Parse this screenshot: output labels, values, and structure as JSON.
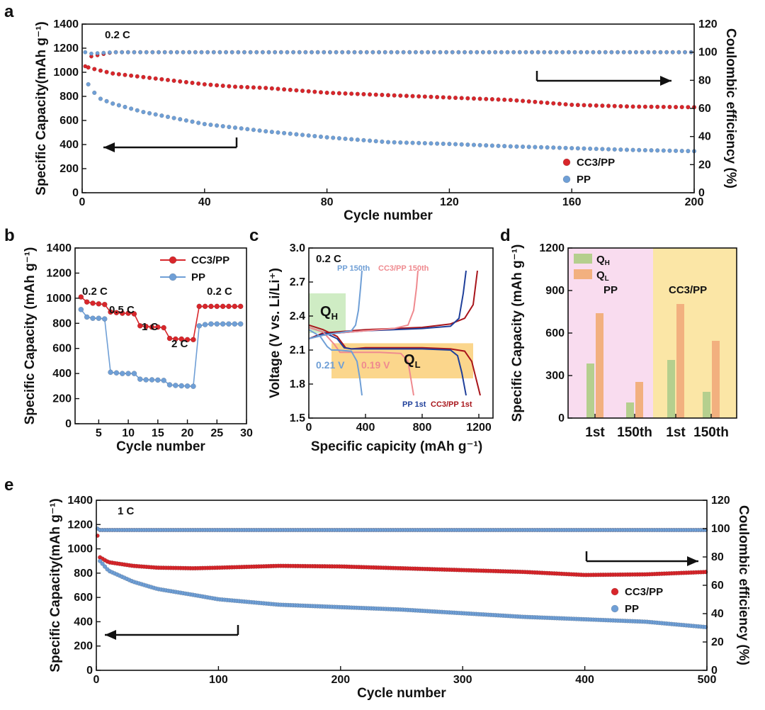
{
  "colors": {
    "red": "#d8262b",
    "blue": "#6f9fd6",
    "darkblue": "#1f3f9a",
    "darkred": "#a8151b",
    "pink": "#ef8a8f",
    "green_bar": "#b5cf8e",
    "orange_bar": "#f2b07f",
    "pink_bg": "#f9dcef",
    "yellow_bg": "#fbe6a6",
    "orange_box": "#f9c45b",
    "green_box": "#bfe5b0"
  },
  "chart_data": [
    {
      "panel": "a",
      "type": "scatter",
      "xlabel": "Cycle number",
      "ylabel": "Specific Capacity(mAh g⁻¹)",
      "y2label": "Coulombic efficiency (%)",
      "xlim": [
        0,
        200
      ],
      "ylim": [
        0,
        1400
      ],
      "y2lim": [
        0,
        120
      ],
      "xticks": [
        "0",
        "40",
        "80",
        "120",
        "160",
        "200"
      ],
      "yticks": [
        "0",
        "200",
        "400",
        "600",
        "800",
        "1000",
        "1200",
        "1400"
      ],
      "y2ticks": [
        "0",
        "20",
        "40",
        "60",
        "80",
        "100",
        "120"
      ],
      "annotation": "0.2 C",
      "series": [
        {
          "name": "CC3/PP",
          "color": "red",
          "x": [
            2,
            5,
            10,
            20,
            30,
            40,
            50,
            60,
            80,
            100,
            120,
            140,
            160,
            180,
            200
          ],
          "y": [
            1040,
            1020,
            990,
            960,
            930,
            900,
            880,
            870,
            830,
            810,
            790,
            770,
            730,
            715,
            710
          ]
        },
        {
          "name": "PP",
          "color": "blue",
          "x": [
            2,
            4,
            6,
            10,
            20,
            30,
            40,
            50,
            60,
            80,
            100,
            120,
            140,
            160,
            180,
            200
          ],
          "y": [
            900,
            830,
            780,
            740,
            670,
            620,
            570,
            540,
            510,
            460,
            420,
            405,
            385,
            370,
            355,
            345
          ]
        }
      ],
      "ce_series": [
        {
          "name": "CC3/PP",
          "color": "red",
          "x": [
            1,
            3,
            10,
            200
          ],
          "y": [
            90,
            97,
            100,
            100
          ]
        },
        {
          "name": "PP",
          "color": "blue",
          "x": [
            1,
            3,
            10,
            200
          ],
          "y": [
            100,
            99,
            100,
            100
          ]
        }
      ]
    },
    {
      "panel": "b",
      "type": "line",
      "xlabel": "Cycle number",
      "ylabel": "Specific Capacity (mAh g⁻¹)",
      "xlim": [
        1,
        30
      ],
      "ylim": [
        0,
        1400
      ],
      "xticks": [
        "5",
        "10",
        "15",
        "20",
        "25",
        "30"
      ],
      "yticks": [
        "0",
        "200",
        "400",
        "600",
        "800",
        "1000",
        "1200",
        "1400"
      ],
      "rate_labels": [
        "0.2 C",
        "0.5 C",
        "1 C",
        "2 C",
        "0.2 C"
      ],
      "series": [
        {
          "name": "CC3/PP",
          "color": "red",
          "x": [
            2,
            3,
            4,
            5,
            6,
            7,
            8,
            9,
            10,
            11,
            12,
            13,
            14,
            15,
            16,
            17,
            18,
            19,
            20,
            21,
            22,
            23,
            24,
            25,
            26,
            27,
            28,
            29
          ],
          "y": [
            1010,
            970,
            960,
            955,
            950,
            890,
            885,
            880,
            880,
            875,
            780,
            775,
            770,
            770,
            765,
            680,
            675,
            675,
            670,
            670,
            935,
            935,
            935,
            935,
            935,
            935,
            935,
            935
          ]
        },
        {
          "name": "PP",
          "color": "blue",
          "x": [
            2,
            3,
            4,
            5,
            6,
            7,
            8,
            9,
            10,
            11,
            12,
            13,
            14,
            15,
            16,
            17,
            18,
            19,
            20,
            21,
            22,
            23,
            24,
            25,
            26,
            27,
            28,
            29
          ],
          "y": [
            910,
            850,
            840,
            840,
            835,
            410,
            405,
            400,
            400,
            400,
            355,
            350,
            350,
            348,
            345,
            310,
            305,
            302,
            300,
            298,
            780,
            790,
            795,
            795,
            795,
            795,
            795,
            795
          ]
        }
      ]
    },
    {
      "panel": "c",
      "type": "line",
      "xlabel": "Specific capicity (mAh g⁻¹)",
      "ylabel": "Voltage (V vs. Li/Li⁺)",
      "xlim": [
        0,
        1300
      ],
      "ylim": [
        1.5,
        3.0
      ],
      "xticks": [
        "0",
        "400",
        "800",
        "1200"
      ],
      "yticks": [
        "1.5",
        "1.8",
        "2.1",
        "2.4",
        "2.7",
        "3.0"
      ],
      "annotation": "0.2 C",
      "labels": {
        "pp150": "PP 150th",
        "cc150": "CC3/PP 150th",
        "pp1": "PP 1st",
        "cc1": "CC3/PP 1st",
        "v1": "0.21 V",
        "v2": "0.19 V",
        "qh_main": "Q",
        "qh_sub": "H",
        "ql_main": "Q",
        "ql_sub": "L"
      },
      "curves": [
        {
          "key": "cc1_dis",
          "color": "darkred",
          "x": [
            0,
            100,
            200,
            260,
            300,
            400,
            600,
            800,
            1000,
            1100,
            1150,
            1180,
            1210
          ],
          "y": [
            2.32,
            2.28,
            2.22,
            2.12,
            2.11,
            2.12,
            2.12,
            2.12,
            2.11,
            2.09,
            2.0,
            1.85,
            1.7
          ]
        },
        {
          "key": "cc1_chg",
          "color": "darkred",
          "x": [
            0,
            100,
            200,
            400,
            600,
            800,
            1000,
            1100,
            1160,
            1180,
            1190
          ],
          "y": [
            2.2,
            2.25,
            2.26,
            2.28,
            2.29,
            2.3,
            2.33,
            2.38,
            2.5,
            2.7,
            2.8
          ]
        },
        {
          "key": "pp1_dis",
          "color": "darkblue",
          "x": [
            0,
            100,
            200,
            250,
            300,
            400,
            600,
            800,
            1000,
            1050,
            1080,
            1110
          ],
          "y": [
            2.3,
            2.26,
            2.2,
            2.12,
            2.11,
            2.11,
            2.11,
            2.11,
            2.1,
            2.05,
            1.9,
            1.7
          ]
        },
        {
          "key": "pp1_chg",
          "color": "darkblue",
          "x": [
            0,
            100,
            200,
            400,
            600,
            800,
            1000,
            1060,
            1090,
            1110
          ],
          "y": [
            2.2,
            2.24,
            2.25,
            2.27,
            2.28,
            2.29,
            2.31,
            2.38,
            2.6,
            2.8
          ]
        },
        {
          "key": "cc150_dis",
          "color": "pink",
          "x": [
            0,
            100,
            180,
            220,
            300,
            500,
            650,
            700,
            720,
            740
          ],
          "y": [
            2.3,
            2.26,
            2.15,
            2.08,
            2.08,
            2.08,
            2.07,
            2.0,
            1.85,
            1.7
          ]
        },
        {
          "key": "cc150_chg",
          "color": "pink",
          "x": [
            0,
            100,
            200,
            400,
            600,
            700,
            740,
            760,
            770
          ],
          "y": [
            2.2,
            2.23,
            2.25,
            2.27,
            2.29,
            2.32,
            2.45,
            2.65,
            2.8
          ]
        },
        {
          "key": "pp150_dis",
          "color": "blue",
          "x": [
            0,
            80,
            130,
            160,
            200,
            300,
            340,
            360,
            375
          ],
          "y": [
            2.28,
            2.22,
            2.13,
            2.1,
            2.1,
            2.09,
            2.0,
            1.85,
            1.7
          ]
        },
        {
          "key": "pp150_chg",
          "color": "blue",
          "x": [
            0,
            100,
            200,
            300,
            330,
            350,
            365,
            375
          ],
          "y": [
            2.2,
            2.23,
            2.25,
            2.27,
            2.32,
            2.45,
            2.65,
            2.8
          ]
        }
      ]
    },
    {
      "panel": "d",
      "type": "bar",
      "ylabel": "Specific Capacity (mAh g⁻¹)",
      "ylim": [
        0,
        1200
      ],
      "yticks": [
        "0",
        "300",
        "600",
        "900",
        "1200"
      ],
      "categories": [
        "1st",
        "150th",
        "1st",
        "150th"
      ],
      "group_labels": [
        "PP",
        "CC3/PP"
      ],
      "legend": [
        {
          "main": "Q",
          "sub": "H",
          "color": "green_bar"
        },
        {
          "main": "Q",
          "sub": "L",
          "color": "orange_bar"
        }
      ],
      "series": [
        {
          "key": "QH",
          "color": "green_bar",
          "values": [
            385,
            110,
            410,
            185
          ]
        },
        {
          "key": "QL",
          "color": "orange_bar",
          "values": [
            740,
            255,
            805,
            545
          ]
        }
      ]
    },
    {
      "panel": "e",
      "type": "scatter",
      "xlabel": "Cycle number",
      "ylabel": "Specific Capacity(mAh g⁻¹)",
      "y2label": "Coulombic efficiency (%)",
      "xlim": [
        0,
        500
      ],
      "ylim": [
        0,
        1400
      ],
      "y2lim": [
        0,
        120
      ],
      "xticks": [
        "0",
        "100",
        "200",
        "300",
        "400",
        "500"
      ],
      "yticks": [
        "0",
        "200",
        "400",
        "600",
        "800",
        "1000",
        "1200",
        "1400"
      ],
      "y2ticks": [
        "0",
        "20",
        "40",
        "60",
        "80",
        "100",
        "120"
      ],
      "annotation": "1 C",
      "series": [
        {
          "name": "CC3/PP",
          "color": "red",
          "x": [
            3,
            10,
            30,
            50,
            80,
            100,
            150,
            200,
            250,
            300,
            350,
            400,
            450,
            500
          ],
          "y": [
            930,
            890,
            860,
            845,
            840,
            845,
            860,
            855,
            840,
            825,
            810,
            785,
            790,
            810
          ]
        },
        {
          "name": "PP",
          "color": "blue",
          "x": [
            3,
            10,
            30,
            50,
            80,
            100,
            150,
            200,
            250,
            300,
            350,
            400,
            450,
            500
          ],
          "y": [
            900,
            820,
            730,
            670,
            620,
            585,
            540,
            520,
            500,
            470,
            440,
            420,
            400,
            355
          ]
        }
      ],
      "ce_series": [
        {
          "name": "CC3/PP",
          "color": "red",
          "x": [
            1,
            3,
            10,
            500
          ],
          "y": [
            95,
            99,
            99,
            99
          ]
        },
        {
          "name": "PP",
          "color": "blue",
          "x": [
            1,
            3,
            10,
            500
          ],
          "y": [
            100,
            99,
            99,
            99
          ]
        }
      ]
    }
  ],
  "panel_labels": [
    "a",
    "b",
    "c",
    "d",
    "e"
  ]
}
